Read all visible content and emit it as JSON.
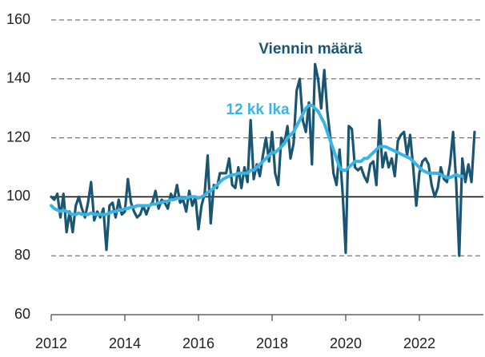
{
  "chart_data": {
    "type": "line",
    "annotations": [
      {
        "text": "Viennin määrä",
        "series": 0
      },
      {
        "text": "12 kk lka",
        "series": 1
      }
    ],
    "x": [
      2012,
      2012.083,
      2012.167,
      2012.25,
      2012.333,
      2012.417,
      2012.5,
      2012.583,
      2012.667,
      2012.75,
      2012.833,
      2012.917,
      2013,
      2013.083,
      2013.167,
      2013.25,
      2013.333,
      2013.417,
      2013.5,
      2013.583,
      2013.667,
      2013.75,
      2013.833,
      2013.917,
      2014,
      2014.083,
      2014.167,
      2014.25,
      2014.333,
      2014.417,
      2014.5,
      2014.583,
      2014.667,
      2014.75,
      2014.833,
      2014.917,
      2015,
      2015.083,
      2015.167,
      2015.25,
      2015.333,
      2015.417,
      2015.5,
      2015.583,
      2015.667,
      2015.75,
      2015.833,
      2015.917,
      2016,
      2016.083,
      2016.167,
      2016.25,
      2016.333,
      2016.417,
      2016.5,
      2016.583,
      2016.667,
      2016.75,
      2016.833,
      2016.917,
      2017,
      2017.083,
      2017.167,
      2017.25,
      2017.333,
      2017.417,
      2017.5,
      2017.583,
      2017.667,
      2017.75,
      2017.833,
      2017.917,
      2018,
      2018.083,
      2018.167,
      2018.25,
      2018.333,
      2018.417,
      2018.5,
      2018.583,
      2018.667,
      2018.75,
      2018.833,
      2018.917,
      2019,
      2019.083,
      2019.167,
      2019.25,
      2019.333,
      2019.417,
      2019.5,
      2019.583,
      2019.667,
      2019.75,
      2019.833,
      2019.917,
      2020,
      2020.083,
      2020.167,
      2020.25,
      2020.333,
      2020.417,
      2020.5,
      2020.583,
      2020.667,
      2020.75,
      2020.833,
      2020.917,
      2021,
      2021.083,
      2021.167,
      2021.25,
      2021.333,
      2021.417,
      2021.5,
      2021.583,
      2021.667,
      2021.75,
      2021.833,
      2021.917,
      2022,
      2022.083,
      2022.167,
      2022.25,
      2022.333,
      2022.417,
      2022.5,
      2022.583,
      2022.667,
      2022.75,
      2022.833,
      2022.917,
      2023,
      2023.083,
      2023.167,
      2023.25,
      2023.333,
      2023.417,
      2023.5
    ],
    "series": [
      {
        "name": "Viennin määrä",
        "color": "#1a5571",
        "values": [
          100,
          99,
          101,
          93,
          101,
          88,
          95,
          88,
          97,
          100,
          96,
          93,
          98,
          105,
          92,
          95,
          93,
          96,
          82,
          97,
          98,
          93,
          99,
          94,
          95,
          106,
          98,
          95,
          93,
          94,
          97,
          94,
          97,
          98,
          102,
          96,
          99,
          98,
          96,
          101,
          99,
          104,
          98,
          99,
          95,
          102,
          97,
          100,
          89,
          97,
          101,
          114,
          91,
          104,
          103,
          108,
          108,
          108,
          113,
          104,
          103,
          110,
          103,
          110,
          105,
          126,
          106,
          111,
          107,
          114,
          120,
          112,
          122,
          108,
          104,
          120,
          118,
          124,
          113,
          118,
          136,
          140,
          126,
          122,
          132,
          111,
          145,
          140,
          130,
          143,
          129,
          120,
          108,
          104,
          116,
          101,
          81,
          124,
          123,
          110,
          109,
          110,
          107,
          105,
          111,
          112,
          104,
          126,
          110,
          115,
          110,
          113,
          107,
          119,
          121,
          122,
          114,
          121,
          110,
          97,
          108,
          112,
          113,
          111,
          104,
          100,
          103,
          110,
          106,
          105,
          111,
          122,
          105,
          80,
          113,
          105,
          111,
          105,
          122
        ]
      },
      {
        "name": "12 kk lka",
        "color": "#3bb3e3",
        "values": [
          97,
          96,
          95.5,
          95,
          95.5,
          95,
          94.5,
          94,
          94,
          94.5,
          94,
          94,
          94,
          94.5,
          94,
          94,
          94,
          94,
          94,
          94.5,
          95,
          95,
          95.5,
          95.5,
          96,
          96,
          96.5,
          96.5,
          97,
          97,
          97,
          97,
          97,
          97.5,
          97.5,
          98,
          98,
          98.5,
          98.5,
          99,
          99,
          99.5,
          99.5,
          99.5,
          99.5,
          100,
          100,
          100,
          99.5,
          100,
          100.5,
          101.5,
          102,
          103,
          104,
          105,
          106,
          106.5,
          107,
          107.5,
          107.5,
          108,
          108,
          108,
          108,
          109,
          109,
          110,
          111,
          112,
          113,
          114,
          115,
          115,
          116,
          117,
          118,
          120,
          121,
          122,
          124,
          126,
          128,
          130,
          131,
          131,
          130,
          129,
          127,
          125,
          122,
          119,
          116,
          113,
          110,
          109,
          109,
          110,
          111,
          112,
          112,
          112,
          113,
          113,
          114,
          115,
          116,
          117,
          117,
          117,
          116.5,
          116,
          115.5,
          115,
          114.5,
          114,
          113.5,
          113,
          112,
          111,
          110,
          109,
          108.5,
          108,
          108,
          108,
          108,
          107.5,
          107,
          106.5,
          106.5,
          107,
          107.5,
          107,
          107,
          null,
          null,
          null,
          null
        ]
      }
    ],
    "xlim": [
      2012,
      2023.74
    ],
    "xticks": [
      2012,
      2014,
      2016,
      2018,
      2020,
      2022
    ],
    "ylim": [
      60,
      160
    ],
    "yticks": [
      60,
      80,
      100,
      120,
      140,
      160
    ],
    "grid": true,
    "hline": 100
  }
}
